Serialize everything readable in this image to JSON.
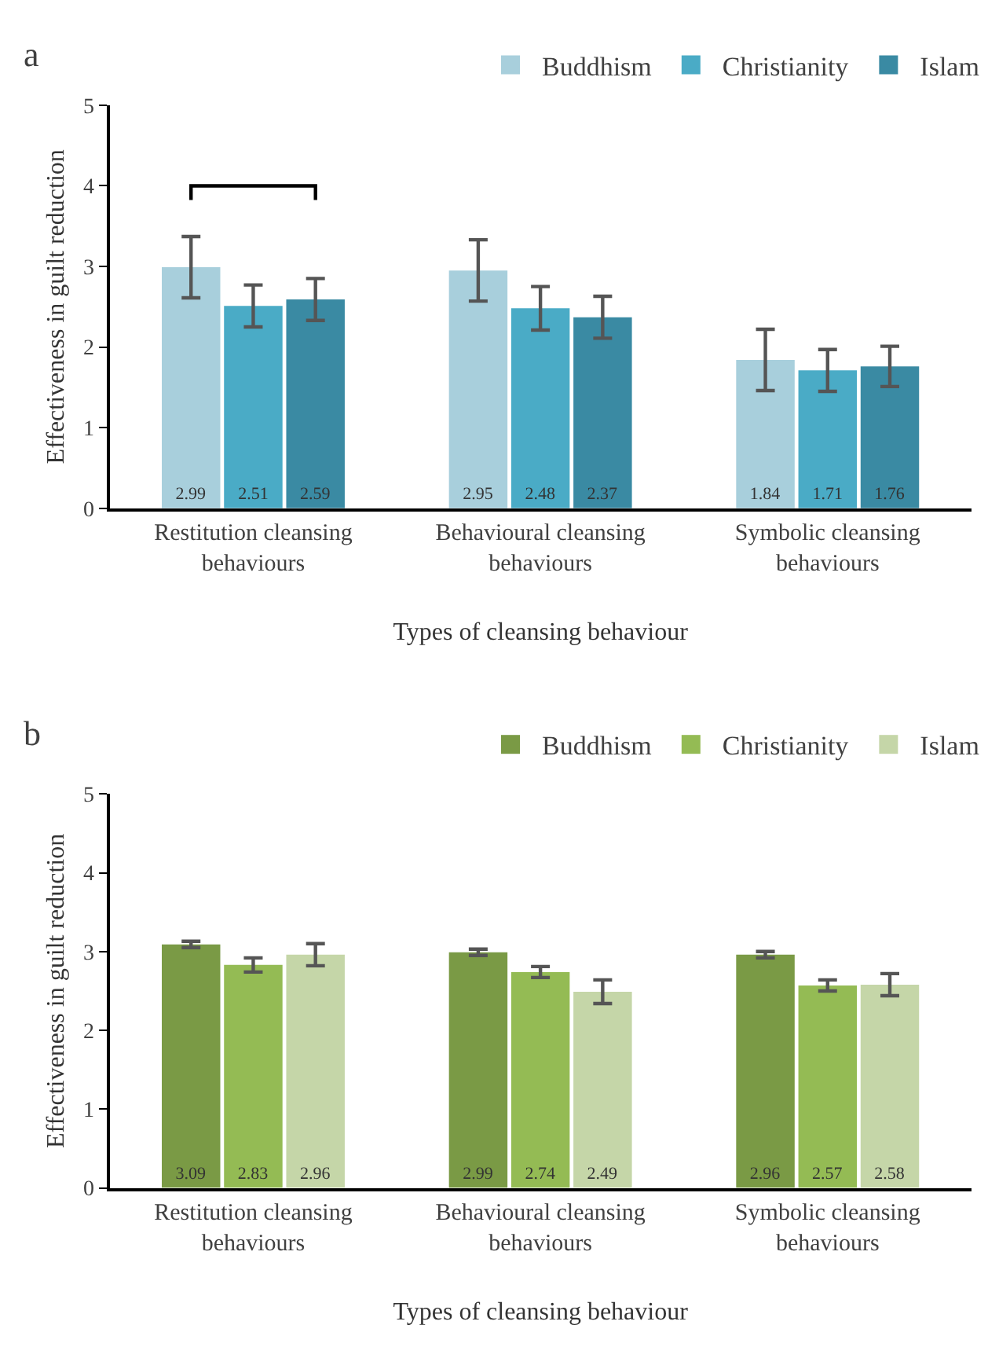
{
  "chart_data": [
    {
      "type": "bar",
      "title": "a",
      "xlabel": "Types of cleansing behaviour",
      "ylabel": "Effectiveness in guilt reduction",
      "categories": [
        "Restitution cleansing behaviours",
        "Behavioural cleansing behaviours",
        "Symbolic cleansing behaviours"
      ],
      "series": [
        {
          "name": "Buddhism",
          "color": "#a8cfdc",
          "values": [
            2.99,
            2.95,
            1.84
          ],
          "errors": [
            0.38,
            0.38,
            0.38
          ]
        },
        {
          "name": "Christianity",
          "color": "#4aabc6",
          "values": [
            2.51,
            2.48,
            1.71
          ],
          "errors": [
            0.26,
            0.27,
            0.26
          ]
        },
        {
          "name": "Islam",
          "color": "#3a8aa3",
          "values": [
            2.59,
            2.37,
            1.76
          ],
          "errors": [
            0.26,
            0.26,
            0.25
          ]
        }
      ],
      "ylim": [
        0,
        5
      ],
      "yticks": [
        0,
        1,
        2,
        3,
        4,
        5
      ],
      "legend": "top right",
      "data_labels": true
    },
    {
      "type": "bar",
      "title": "b",
      "xlabel": "Types of cleansing behaviour",
      "ylabel": "Effectiveness in guilt reduction",
      "categories": [
        "Restitution cleansing behaviours",
        "Behavioural cleansing behaviours",
        "Symbolic cleansing behaviours"
      ],
      "series": [
        {
          "name": "Buddhism",
          "color": "#7a9a45",
          "values": [
            3.09,
            2.99,
            2.96
          ],
          "errors": [
            0.04,
            0.04,
            0.04
          ]
        },
        {
          "name": "Christianity",
          "color": "#94bb54",
          "values": [
            2.83,
            2.74,
            2.57
          ],
          "errors": [
            0.09,
            0.07,
            0.07
          ]
        },
        {
          "name": "Islam",
          "color": "#c5d6a8",
          "values": [
            2.96,
            2.49,
            2.58
          ],
          "errors": [
            0.14,
            0.15,
            0.14
          ]
        }
      ],
      "ylim": [
        0,
        5
      ],
      "yticks": [
        0,
        1,
        2,
        3,
        4,
        5
      ],
      "legend": "top right",
      "data_labels": true
    }
  ]
}
